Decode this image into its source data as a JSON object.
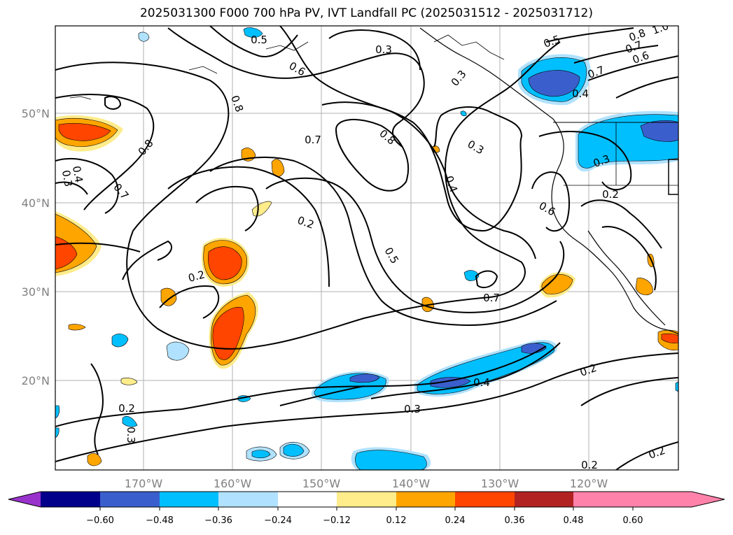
{
  "title": "2025031300 F000 700 hPa PV, IVT Landfall PC (2025031512 - 2025031712)",
  "lat_labels": [
    "50°N",
    "40°N",
    "30°N",
    "20°N"
  ],
  "lon_labels": [
    "170°W",
    "160°W",
    "150°W",
    "140°W",
    "130°W",
    "120°W"
  ],
  "contour_labels": [
    "0.5",
    "0.3",
    "0.6",
    "0.8",
    "0.7",
    "0.8",
    "0.3",
    "0.5",
    "0.7",
    "0.8",
    "0.6",
    "0.4",
    "0.7",
    "0.8",
    "0.4",
    "0.3",
    "0.7",
    "0.3",
    "0.3",
    "0.4",
    "0.2",
    "0.2",
    "0.2",
    "0.6",
    "0.5",
    "0.7",
    "0.4",
    "0.2",
    "0.3",
    "0.3",
    "0.2",
    "0.2",
    "0.2",
    "1.0"
  ],
  "colorbar": {
    "ticks": [
      "−0.60",
      "−0.48",
      "−0.36",
      "−0.24",
      "−0.12",
      "0.12",
      "0.24",
      "0.36",
      "0.48",
      "0.60"
    ],
    "colors": [
      "#9932cc",
      "#00008b",
      "#3a5fcd",
      "#00bfff",
      "#b0e2ff",
      "#ffffff",
      "#ffec8b",
      "#ffa500",
      "#ff4500",
      "#b22222",
      "#ff82ab"
    ]
  }
}
